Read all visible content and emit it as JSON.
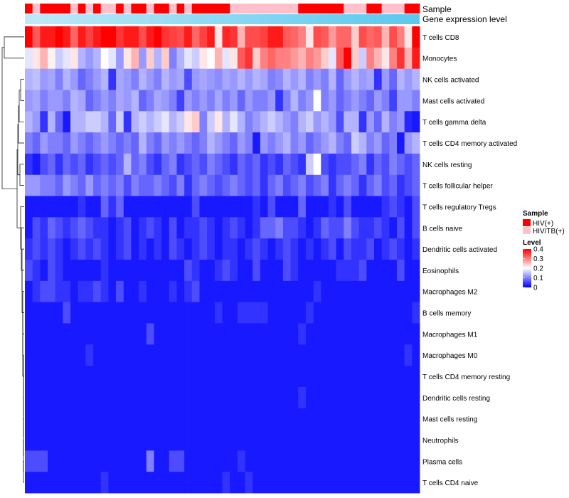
{
  "chart_data": {
    "type": "heatmap",
    "annotation_tracks": [
      {
        "name": "Sample"
      },
      {
        "name": "Gene expression level"
      }
    ],
    "sample_groups": [
      "HIV(+)",
      "HIV/TB(+)",
      "HIV(+)",
      "HIV(+)",
      "HIV(+)",
      "HIV(+)",
      "HIV/TB(+)",
      "HIV(+)",
      "HIV/TB(+)",
      "HIV(+)",
      "HIV/TB(+)",
      "HIV/TB(+)",
      "HIV(+)",
      "HIV/TB(+)",
      "HIV(+)",
      "HIV(+)",
      "HIV/TB(+)",
      "HIV(+)",
      "HIV(+)",
      "HIV/TB(+)",
      "HIV(+)",
      "HIV/TB(+)",
      "HIV(+)",
      "HIV(+)",
      "HIV(+)",
      "HIV(+)",
      "HIV(+)",
      "HIV/TB(+)",
      "HIV/TB(+)",
      "HIV/TB(+)",
      "HIV/TB(+)",
      "HIV/TB(+)",
      "HIV/TB(+)",
      "HIV/TB(+)",
      "HIV/TB(+)",
      "HIV/TB(+)",
      "HIV(+)",
      "HIV(+)",
      "HIV(+)",
      "HIV(+)",
      "HIV(+)",
      "HIV(+)",
      "HIV/TB(+)",
      "HIV/TB(+)",
      "HIV/TB(+)",
      "HIV(+)",
      "HIV(+)",
      "HIV/TB(+)",
      "HIV/TB(+)",
      "HIV/TB(+)",
      "HIV(+)",
      "HIV(+)"
    ],
    "rows": [
      "T cells CD8",
      "Monocytes",
      "NK cells activated",
      "Mast cells activated",
      "T cells gamma delta",
      "T cells CD4 memory activated",
      "NK cells resting",
      "T cells follicular helper",
      "T cells regulatory  Tregs",
      "B cells naive",
      "Dendritic cells activated",
      "Eosinophils",
      "Macrophages M2",
      "B cells memory",
      "Macrophages M1",
      "Macrophages M0",
      "T cells CD4 memory resting",
      "Dendritic cells resting",
      "Mast cells resting",
      "Neutrophils",
      "Plasma cells",
      "T cells CD4 naive"
    ],
    "values": [
      [
        0.4,
        0.33,
        0.38,
        0.38,
        0.4,
        0.38,
        0.32,
        0.38,
        0.35,
        0.38,
        0.4,
        0.4,
        0.36,
        0.38,
        0.38,
        0.34,
        0.38,
        0.4,
        0.36,
        0.35,
        0.34,
        0.38,
        0.32,
        0.35,
        0.38,
        0.22,
        0.37,
        0.36,
        0.26,
        0.34,
        0.34,
        0.35,
        0.38,
        0.38,
        0.33,
        0.32,
        0.3,
        0.22,
        0.34,
        0.33,
        0.28,
        0.32,
        0.32,
        0.24,
        0.34,
        0.32,
        0.33,
        0.26,
        0.34,
        0.3,
        0.22,
        0.4
      ],
      [
        0.18,
        0.22,
        0.26,
        0.21,
        0.16,
        0.18,
        0.22,
        0.14,
        0.12,
        0.14,
        0.2,
        0.18,
        0.12,
        0.22,
        0.26,
        0.12,
        0.24,
        0.14,
        0.24,
        0.1,
        0.14,
        0.18,
        0.16,
        0.22,
        0.2,
        0.26,
        0.18,
        0.22,
        0.33,
        0.36,
        0.24,
        0.3,
        0.32,
        0.3,
        0.3,
        0.28,
        0.26,
        0.3,
        0.28,
        0.24,
        0.18,
        0.33,
        0.4,
        0.24,
        0.16,
        0.3,
        0.26,
        0.22,
        0.3,
        0.36,
        0.26,
        0.38
      ],
      [
        0.14,
        0.15,
        0.12,
        0.13,
        0.1,
        0.14,
        0.12,
        0.08,
        0.1,
        0.12,
        0.14,
        0.04,
        0.13,
        0.12,
        0.1,
        0.14,
        0.12,
        0.1,
        0.14,
        0.12,
        0.13,
        0.06,
        0.12,
        0.13,
        0.12,
        0.11,
        0.13,
        0.12,
        0.14,
        0.12,
        0.14,
        0.13,
        0.1,
        0.11,
        0.14,
        0.12,
        0.14,
        0.1,
        0.12,
        0.1,
        0.14,
        0.08,
        0.12,
        0.14,
        0.12,
        0.13,
        0.04,
        0.12,
        0.08,
        0.14,
        0.12,
        0.14
      ],
      [
        0.12,
        0.13,
        0.1,
        0.12,
        0.12,
        0.1,
        0.14,
        0.13,
        0.08,
        0.1,
        0.12,
        0.1,
        0.13,
        0.12,
        0.14,
        0.08,
        0.1,
        0.13,
        0.12,
        0.1,
        0.05,
        0.12,
        0.1,
        0.12,
        0.1,
        0.13,
        0.1,
        0.12,
        0.08,
        0.12,
        0.1,
        0.1,
        0.12,
        0.04,
        0.1,
        0.14,
        0.1,
        0.12,
        0.2,
        0.1,
        0.12,
        0.08,
        0.1,
        0.12,
        0.1,
        0.08,
        0.12,
        0.1,
        0.05,
        0.12,
        0.12,
        0.1
      ],
      [
        0.14,
        0.12,
        0.04,
        0.14,
        0.08,
        0.02,
        0.14,
        0.14,
        0.16,
        0.16,
        0.14,
        0.08,
        0.16,
        0.04,
        0.14,
        0.16,
        0.14,
        0.16,
        0.18,
        0.14,
        0.16,
        0.22,
        0.24,
        0.1,
        0.16,
        0.22,
        0.14,
        0.18,
        0.14,
        0.1,
        0.12,
        0.14,
        0.16,
        0.14,
        0.12,
        0.1,
        0.14,
        0.16,
        0.12,
        0.14,
        0.12,
        0.06,
        0.14,
        0.14,
        0.04,
        0.12,
        0.08,
        0.14,
        0.1,
        0.12,
        0.03,
        0.02
      ],
      [
        0.1,
        0.08,
        0.12,
        0.1,
        0.1,
        0.08,
        0.12,
        0.1,
        0.08,
        0.1,
        0.12,
        0.1,
        0.08,
        0.1,
        0.08,
        0.14,
        0.1,
        0.08,
        0.12,
        0.1,
        0.12,
        0.1,
        0.08,
        0.1,
        0.14,
        0.12,
        0.1,
        0.08,
        0.12,
        0.1,
        0.02,
        0.12,
        0.1,
        0.12,
        0.14,
        0.1,
        0.12,
        0.08,
        0.1,
        0.12,
        0.14,
        0.1,
        0.08,
        0.16,
        0.14,
        0.1,
        0.12,
        0.08,
        0.1,
        0.02,
        0.12,
        0.14
      ],
      [
        0.04,
        0.02,
        0.06,
        0.08,
        0.04,
        0.08,
        0.06,
        0.08,
        0.04,
        0.06,
        0.08,
        0.06,
        0.08,
        0.14,
        0.08,
        0.1,
        0.06,
        0.04,
        0.08,
        0.1,
        0.04,
        0.06,
        0.08,
        0.06,
        0.1,
        0.08,
        0.06,
        0.04,
        0.08,
        0.06,
        0.08,
        0.04,
        0.06,
        0.04,
        0.08,
        0.06,
        0.04,
        0.16,
        0.2,
        0.06,
        0.04,
        0.06,
        0.06,
        0.08,
        0.1,
        0.04,
        0.08,
        0.06,
        0.1,
        0.08,
        0.06,
        0.08
      ],
      [
        0.12,
        0.12,
        0.1,
        0.1,
        0.08,
        0.12,
        0.1,
        0.08,
        0.12,
        0.08,
        0.1,
        0.08,
        0.1,
        0.06,
        0.1,
        0.08,
        0.08,
        0.1,
        0.08,
        0.06,
        0.1,
        0.04,
        0.08,
        0.1,
        0.08,
        0.06,
        0.08,
        0.1,
        0.08,
        0.06,
        0.08,
        0.04,
        0.08,
        0.1,
        0.06,
        0.08,
        0.1,
        0.06,
        0.08,
        0.1,
        0.04,
        0.08,
        0.1,
        0.08,
        0.04,
        0.08,
        0.1,
        0.06,
        0.08,
        0.04,
        0.06,
        0.08
      ],
      [
        0.02,
        0.02,
        0.02,
        0.02,
        0.02,
        0.02,
        0.02,
        0.04,
        0.02,
        0.02,
        0.08,
        0.04,
        0.08,
        0.02,
        0.02,
        0.02,
        0.02,
        0.02,
        0.02,
        0.02,
        0.02,
        0.02,
        0.06,
        0.02,
        0.02,
        0.02,
        0.02,
        0.02,
        0.02,
        0.02,
        0.04,
        0.02,
        0.06,
        0.02,
        0.02,
        0.02,
        0.08,
        0.02,
        0.02,
        0.02,
        0.04,
        0.02,
        0.06,
        0.02,
        0.02,
        0.02,
        0.02,
        0.04,
        0.06,
        0.04,
        0.02,
        0.06
      ],
      [
        0.02,
        0.06,
        0.04,
        0.08,
        0.06,
        0.04,
        0.06,
        0.08,
        0.06,
        0.04,
        0.04,
        0.02,
        0.04,
        0.06,
        0.02,
        0.04,
        0.06,
        0.04,
        0.02,
        0.06,
        0.02,
        0.04,
        0.04,
        0.06,
        0.04,
        0.02,
        0.04,
        0.06,
        0.04,
        0.02,
        0.04,
        0.08,
        0.08,
        0.1,
        0.06,
        0.06,
        0.04,
        0.02,
        0.04,
        0.08,
        0.06,
        0.06,
        0.1,
        0.06,
        0.04,
        0.04,
        0.06,
        0.04,
        0.02,
        0.06,
        0.02,
        0.06
      ],
      [
        0.04,
        0.06,
        0.04,
        0.06,
        0.04,
        0.02,
        0.04,
        0.06,
        0.04,
        0.06,
        0.04,
        0.02,
        0.04,
        0.06,
        0.02,
        0.04,
        0.02,
        0.04,
        0.02,
        0.06,
        0.04,
        0.02,
        0.04,
        0.06,
        0.04,
        0.02,
        0.04,
        0.04,
        0.02,
        0.04,
        0.06,
        0.04,
        0.02,
        0.04,
        0.06,
        0.04,
        0.02,
        0.04,
        0.02,
        0.04,
        0.06,
        0.02,
        0.06,
        0.04,
        0.04,
        0.06,
        0.02,
        0.04,
        0.06,
        0.04,
        0.02,
        0.04
      ],
      [
        0.06,
        0.04,
        0.02,
        0.06,
        0.04,
        0.02,
        0.02,
        0.02,
        0.02,
        0.02,
        0.04,
        0.02,
        0.02,
        0.02,
        0.02,
        0.02,
        0.02,
        0.02,
        0.02,
        0.02,
        0.02,
        0.06,
        0.04,
        0.02,
        0.02,
        0.04,
        0.06,
        0.04,
        0.02,
        0.02,
        0.06,
        0.02,
        0.02,
        0.02,
        0.06,
        0.04,
        0.02,
        0.02,
        0.02,
        0.02,
        0.02,
        0.04,
        0.04,
        0.04,
        0.06,
        0.02,
        0.02,
        0.02,
        0.02,
        0.06,
        0.02,
        0.02
      ],
      [
        0.02,
        0.04,
        0.06,
        0.06,
        0.04,
        0.04,
        0.02,
        0.04,
        0.04,
        0.06,
        0.04,
        0.02,
        0.06,
        0.02,
        0.02,
        0.04,
        0.02,
        0.02,
        0.02,
        0.04,
        0.02,
        0.04,
        0.06,
        0.02,
        0.02,
        0.02,
        0.02,
        0.02,
        0.02,
        0.02,
        0.02,
        0.02,
        0.02,
        0.02,
        0.02,
        0.02,
        0.02,
        0.02,
        0.04,
        0.02,
        0.02,
        0.02,
        0.02,
        0.02,
        0.02,
        0.02,
        0.02,
        0.02,
        0.02,
        0.02,
        0.02,
        0.02
      ],
      [
        0.02,
        0.02,
        0.02,
        0.02,
        0.02,
        0.06,
        0.02,
        0.02,
        0.02,
        0.02,
        0.02,
        0.02,
        0.02,
        0.02,
        0.02,
        0.02,
        0.02,
        0.02,
        0.02,
        0.02,
        0.02,
        0.02,
        0.02,
        0.02,
        0.02,
        0.04,
        0.02,
        0.02,
        0.04,
        0.04,
        0.04,
        0.04,
        0.02,
        0.02,
        0.02,
        0.02,
        0.02,
        0.04,
        0.02,
        0.02,
        0.02,
        0.02,
        0.02,
        0.02,
        0.02,
        0.02,
        0.02,
        0.02,
        0.02,
        0.02,
        0.02,
        0.04
      ],
      [
        0.02,
        0.02,
        0.02,
        0.02,
        0.02,
        0.02,
        0.02,
        0.02,
        0.02,
        0.02,
        0.02,
        0.02,
        0.02,
        0.02,
        0.02,
        0.02,
        0.06,
        0.02,
        0.02,
        0.02,
        0.02,
        0.02,
        0.02,
        0.02,
        0.02,
        0.02,
        0.02,
        0.02,
        0.02,
        0.02,
        0.02,
        0.02,
        0.02,
        0.02,
        0.02,
        0.02,
        0.04,
        0.02,
        0.02,
        0.02,
        0.02,
        0.02,
        0.02,
        0.02,
        0.02,
        0.02,
        0.02,
        0.02,
        0.02,
        0.02,
        0.02,
        0.02
      ],
      [
        0.02,
        0.02,
        0.02,
        0.02,
        0.02,
        0.02,
        0.02,
        0.02,
        0.04,
        0.02,
        0.02,
        0.02,
        0.02,
        0.02,
        0.02,
        0.02,
        0.02,
        0.02,
        0.02,
        0.02,
        0.02,
        0.02,
        0.02,
        0.02,
        0.02,
        0.02,
        0.02,
        0.02,
        0.02,
        0.02,
        0.02,
        0.02,
        0.02,
        0.02,
        0.02,
        0.02,
        0.02,
        0.02,
        0.02,
        0.02,
        0.02,
        0.02,
        0.02,
        0.02,
        0.02,
        0.02,
        0.02,
        0.02,
        0.02,
        0.02,
        0.04,
        0.02
      ],
      [
        0.02,
        0.02,
        0.02,
        0.02,
        0.02,
        0.02,
        0.02,
        0.02,
        0.02,
        0.02,
        0.02,
        0.02,
        0.02,
        0.02,
        0.02,
        0.02,
        0.02,
        0.02,
        0.02,
        0.02,
        0.02,
        0.02,
        0.02,
        0.02,
        0.02,
        0.02,
        0.02,
        0.02,
        0.02,
        0.02,
        0.02,
        0.02,
        0.02,
        0.02,
        0.02,
        0.02,
        0.02,
        0.02,
        0.02,
        0.02,
        0.02,
        0.02,
        0.02,
        0.02,
        0.02,
        0.02,
        0.02,
        0.02,
        0.02,
        0.02,
        0.02,
        0.02
      ],
      [
        0.02,
        0.02,
        0.02,
        0.02,
        0.02,
        0.02,
        0.02,
        0.02,
        0.02,
        0.02,
        0.02,
        0.02,
        0.02,
        0.02,
        0.02,
        0.02,
        0.02,
        0.02,
        0.02,
        0.02,
        0.02,
        0.02,
        0.02,
        0.02,
        0.02,
        0.02,
        0.02,
        0.02,
        0.02,
        0.02,
        0.02,
        0.02,
        0.02,
        0.02,
        0.02,
        0.02,
        0.04,
        0.02,
        0.02,
        0.02,
        0.02,
        0.02,
        0.02,
        0.02,
        0.02,
        0.02,
        0.02,
        0.02,
        0.02,
        0.02,
        0.02,
        0.02
      ],
      [
        0.02,
        0.02,
        0.02,
        0.02,
        0.02,
        0.02,
        0.02,
        0.02,
        0.02,
        0.02,
        0.02,
        0.02,
        0.02,
        0.02,
        0.02,
        0.02,
        0.02,
        0.02,
        0.02,
        0.02,
        0.02,
        0.02,
        0.02,
        0.02,
        0.02,
        0.02,
        0.02,
        0.02,
        0.02,
        0.02,
        0.02,
        0.02,
        0.02,
        0.02,
        0.02,
        0.02,
        0.02,
        0.02,
        0.02,
        0.02,
        0.02,
        0.02,
        0.02,
        0.02,
        0.02,
        0.02,
        0.02,
        0.02,
        0.02,
        0.02,
        0.02,
        0.02
      ],
      [
        0.02,
        0.02,
        0.02,
        0.02,
        0.02,
        0.02,
        0.02,
        0.02,
        0.02,
        0.02,
        0.02,
        0.02,
        0.02,
        0.02,
        0.02,
        0.02,
        0.02,
        0.02,
        0.02,
        0.02,
        0.02,
        0.02,
        0.02,
        0.02,
        0.02,
        0.02,
        0.02,
        0.02,
        0.02,
        0.02,
        0.02,
        0.02,
        0.02,
        0.02,
        0.02,
        0.02,
        0.02,
        0.02,
        0.02,
        0.02,
        0.02,
        0.02,
        0.02,
        0.02,
        0.02,
        0.02,
        0.02,
        0.02,
        0.02,
        0.02,
        0.02,
        0.02
      ],
      [
        0.06,
        0.06,
        0.06,
        0.02,
        0.02,
        0.02,
        0.02,
        0.02,
        0.02,
        0.02,
        0.02,
        0.02,
        0.02,
        0.02,
        0.02,
        0.02,
        0.1,
        0.02,
        0.02,
        0.06,
        0.06,
        0.02,
        0.02,
        0.02,
        0.02,
        0.02,
        0.02,
        0.02,
        0.04,
        0.02,
        0.02,
        0.02,
        0.02,
        0.02,
        0.02,
        0.02,
        0.02,
        0.02,
        0.02,
        0.02,
        0.02,
        0.02,
        0.02,
        0.02,
        0.02,
        0.02,
        0.02,
        0.02,
        0.02,
        0.02,
        0.02,
        0.02
      ],
      [
        0.02,
        0.02,
        0.02,
        0.02,
        0.02,
        0.02,
        0.02,
        0.02,
        0.02,
        0.02,
        0.04,
        0.02,
        0.02,
        0.02,
        0.02,
        0.02,
        0.02,
        0.02,
        0.02,
        0.02,
        0.02,
        0.02,
        0.02,
        0.02,
        0.02,
        0.02,
        0.04,
        0.02,
        0.02,
        0.04,
        0.02,
        0.02,
        0.02,
        0.02,
        0.02,
        0.02,
        0.02,
        0.02,
        0.02,
        0.02,
        0.02,
        0.02,
        0.02,
        0.02,
        0.02,
        0.02,
        0.02,
        0.02,
        0.02,
        0.02,
        0.02,
        0.02
      ]
    ],
    "value_range": [
      0,
      0.4
    ],
    "legend": {
      "sample_title": "Sample",
      "sample_entries": [
        {
          "label": "HIV(+)",
          "color": "#ff0000"
        },
        {
          "label": "HIV/TB(+)",
          "color": "#ffc0cb"
        }
      ],
      "level_title": "Level",
      "level_ticks": [
        "0.4",
        "0.3",
        "0.2",
        "0.1",
        "0"
      ],
      "level_tick_values": [
        0.4,
        0.3,
        0.2,
        0.1,
        0
      ],
      "placement": "right"
    },
    "colors": {
      "low": "#0000ff",
      "mid": "#ffffff",
      "high": "#ff0000",
      "expression_bar": "#5ac8ee",
      "dendrogram": "#000000"
    }
  }
}
